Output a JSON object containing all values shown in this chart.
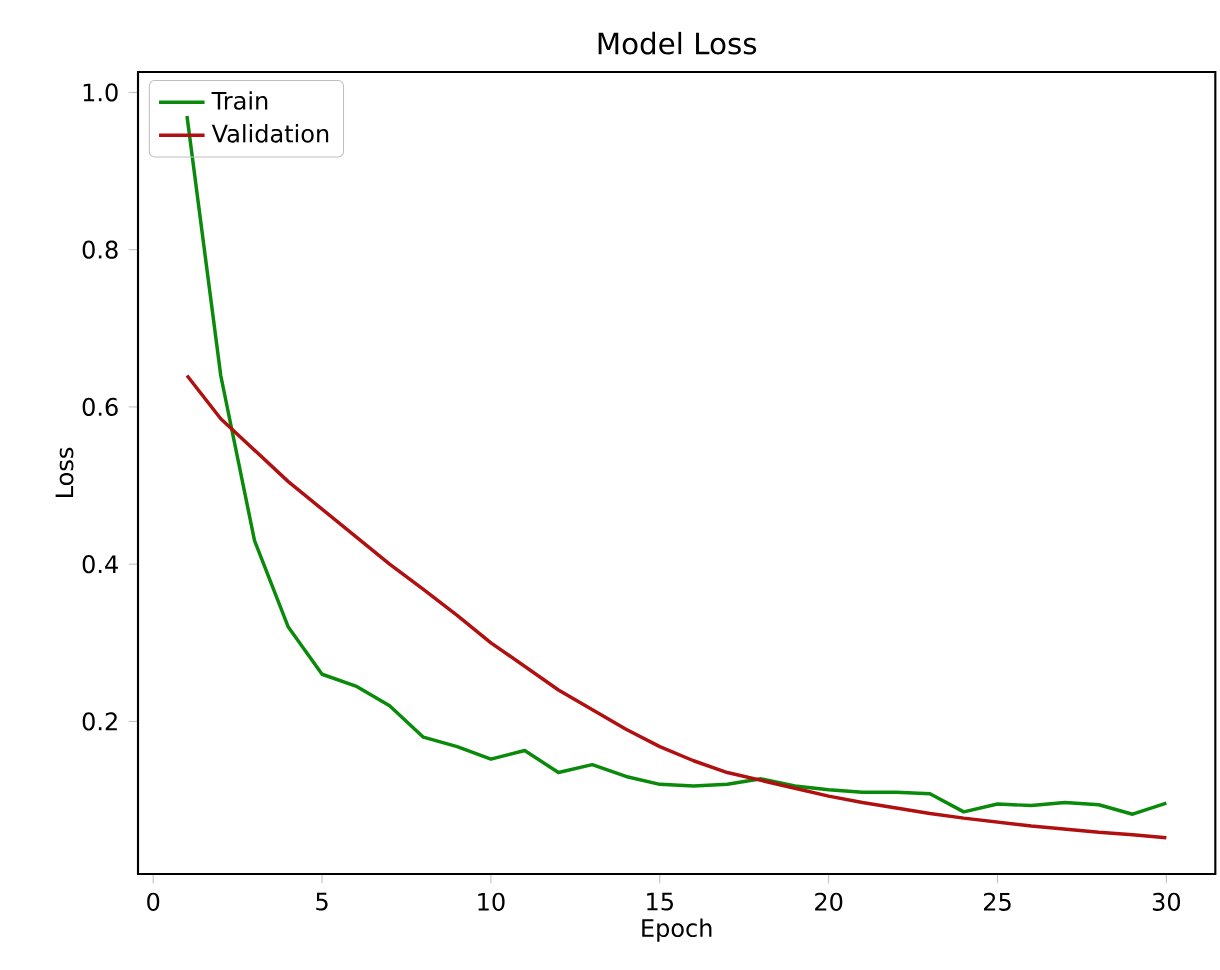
{
  "chart_data": {
    "type": "line",
    "title": "Model Loss",
    "xlabel": "Epoch",
    "ylabel": "Loss",
    "x": [
      1,
      2,
      3,
      4,
      5,
      6,
      7,
      8,
      9,
      10,
      11,
      12,
      13,
      14,
      15,
      16,
      17,
      18,
      19,
      20,
      21,
      22,
      23,
      24,
      25,
      26,
      27,
      28,
      29,
      30
    ],
    "series": [
      {
        "name": "Train",
        "color": "#0a8a0a",
        "values": [
          0.97,
          0.64,
          0.43,
          0.32,
          0.26,
          0.245,
          0.22,
          0.18,
          0.168,
          0.152,
          0.163,
          0.135,
          0.145,
          0.13,
          0.12,
          0.118,
          0.12,
          0.127,
          0.118,
          0.113,
          0.11,
          0.11,
          0.108,
          0.085,
          0.095,
          0.093,
          0.097,
          0.094,
          0.082,
          0.096
        ]
      },
      {
        "name": "Validation",
        "color": "#b01010",
        "values": [
          0.64,
          0.585,
          0.545,
          0.505,
          0.47,
          0.435,
          0.4,
          0.368,
          0.335,
          0.3,
          0.27,
          0.24,
          0.215,
          0.19,
          0.168,
          0.15,
          0.135,
          0.125,
          0.115,
          0.105,
          0.097,
          0.09,
          0.083,
          0.077,
          0.072,
          0.067,
          0.063,
          0.059,
          0.056,
          0.052
        ]
      }
    ],
    "xlim": [
      -0.45,
      31.45
    ],
    "ylim": [
      0.006,
      1.026
    ],
    "xticks": [
      0,
      5,
      10,
      15,
      20,
      25,
      30
    ],
    "yticks": [
      {
        "value": 0.2,
        "label": "0.2"
      },
      {
        "value": 0.4,
        "label": "0.4"
      },
      {
        "value": 0.6,
        "label": "0.6"
      },
      {
        "value": 0.8,
        "label": "0.8"
      },
      {
        "value": 1.0,
        "label": "1.0"
      }
    ],
    "legend": "top left",
    "grid": false
  }
}
